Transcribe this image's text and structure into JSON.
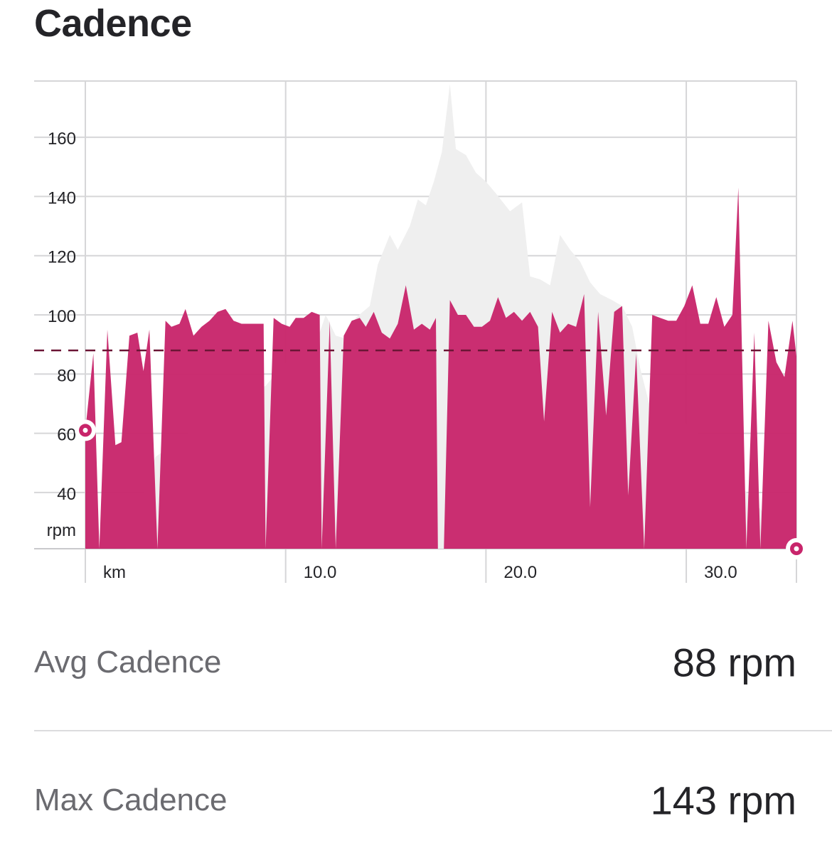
{
  "header": {
    "title": "Cadence"
  },
  "stats": {
    "avg": {
      "label": "Avg Cadence",
      "value": "88 rpm"
    },
    "max": {
      "label": "Max Cadence",
      "value": "143 rpm"
    }
  },
  "colors": {
    "cadence_fill": "#c8256b",
    "elevation_fill": "#efefef",
    "avg_line": "#6b1535",
    "grid": "#d6d6d8",
    "text": "#242428",
    "label_text": "#6b6b70"
  },
  "chart_data": {
    "type": "area",
    "title": "Cadence",
    "ylabel": "rpm",
    "xlabel": "km",
    "ylim": [
      21,
      179
    ],
    "xlim": [
      0,
      35.5
    ],
    "yticks": [
      40,
      60,
      80,
      100,
      120,
      140,
      160
    ],
    "ytick_labels": [
      "40",
      "60",
      "80",
      "100",
      "120",
      "140",
      "160"
    ],
    "xticks": [
      0,
      10,
      20,
      30,
      35.5
    ],
    "xtick_labels": [
      "km",
      "10.0",
      "20.0",
      "30.0",
      ""
    ],
    "grid": true,
    "avg_line": 88,
    "markers": [
      {
        "x": 0,
        "y": 61
      },
      {
        "x": 35.5,
        "y": 21
      }
    ],
    "series": [
      {
        "name": "",
        "points": [
          [
            0,
            61
          ],
          [
            0.4,
            87
          ],
          [
            0.7,
            21
          ],
          [
            1.1,
            95
          ],
          [
            1.5,
            56
          ],
          [
            1.8,
            57
          ],
          [
            2.2,
            93
          ],
          [
            2.6,
            94
          ],
          [
            2.9,
            81
          ],
          [
            3.2,
            95
          ],
          [
            3.6,
            21
          ],
          [
            4.0,
            98
          ],
          [
            4.3,
            96
          ],
          [
            4.7,
            97
          ],
          [
            5.0,
            102
          ],
          [
            5.4,
            93
          ],
          [
            5.8,
            96
          ],
          [
            6.2,
            98
          ],
          [
            6.6,
            101
          ],
          [
            7.0,
            102
          ],
          [
            7.4,
            98
          ],
          [
            7.8,
            97
          ],
          [
            8.2,
            97
          ],
          [
            8.6,
            97
          ],
          [
            8.9,
            97
          ],
          [
            9.0,
            21
          ],
          [
            9.4,
            99
          ],
          [
            9.8,
            97
          ],
          [
            10.2,
            96
          ],
          [
            10.5,
            99
          ],
          [
            10.9,
            99
          ],
          [
            11.3,
            101
          ],
          [
            11.7,
            100
          ],
          [
            11.8,
            21
          ],
          [
            12.2,
            98
          ],
          [
            12.5,
            21
          ],
          [
            12.9,
            93
          ],
          [
            13.3,
            98
          ],
          [
            13.7,
            99
          ],
          [
            14.0,
            96
          ],
          [
            14.4,
            101
          ],
          [
            14.8,
            94
          ],
          [
            15.2,
            92
          ],
          [
            15.6,
            97
          ],
          [
            16.0,
            110
          ],
          [
            16.4,
            95
          ],
          [
            16.8,
            97
          ],
          [
            17.2,
            95
          ],
          [
            17.5,
            99
          ],
          [
            17.6,
            21
          ],
          [
            17.9,
            21
          ],
          [
            18.2,
            105
          ],
          [
            18.6,
            100
          ],
          [
            19.0,
            100
          ],
          [
            19.4,
            96
          ],
          [
            19.8,
            96
          ],
          [
            20.2,
            98
          ],
          [
            20.6,
            106
          ],
          [
            21.0,
            99
          ],
          [
            21.4,
            101
          ],
          [
            21.8,
            98
          ],
          [
            22.2,
            101
          ],
          [
            22.6,
            96
          ],
          [
            22.9,
            64
          ],
          [
            23.3,
            101
          ],
          [
            23.7,
            94
          ],
          [
            24.1,
            97
          ],
          [
            24.5,
            96
          ],
          [
            24.9,
            107
          ],
          [
            25.2,
            35
          ],
          [
            25.6,
            101
          ],
          [
            26.0,
            66
          ],
          [
            26.4,
            101
          ],
          [
            26.8,
            103
          ],
          [
            27.1,
            39
          ],
          [
            27.5,
            87
          ],
          [
            27.9,
            21
          ],
          [
            28.3,
            100
          ],
          [
            28.7,
            99
          ],
          [
            29.1,
            98
          ],
          [
            29.5,
            98
          ],
          [
            29.9,
            103
          ],
          [
            30.3,
            110
          ],
          [
            30.7,
            97
          ],
          [
            31.1,
            97
          ],
          [
            31.5,
            106
          ],
          [
            31.9,
            96
          ],
          [
            32.3,
            100
          ],
          [
            32.6,
            143
          ],
          [
            33.0,
            21
          ],
          [
            33.4,
            94
          ],
          [
            33.7,
            21
          ],
          [
            34.1,
            98
          ],
          [
            34.5,
            84
          ],
          [
            34.9,
            79
          ],
          [
            35.3,
            98
          ],
          [
            35.7,
            86
          ],
          [
            36.1,
            21
          ]
        ]
      }
    ],
    "background_area": {
      "points": [
        [
          0,
          21
        ],
        [
          2.0,
          21
        ],
        [
          3.5,
          52
        ],
        [
          5.5,
          62
        ],
        [
          7.5,
          71
        ],
        [
          9.0,
          76
        ],
        [
          10.5,
          88
        ],
        [
          11.5,
          90
        ],
        [
          12.0,
          100
        ],
        [
          12.5,
          93
        ],
        [
          13.0,
          92
        ],
        [
          13.5,
          99
        ],
        [
          14.2,
          103
        ],
        [
          14.6,
          117
        ],
        [
          15.2,
          127
        ],
        [
          15.6,
          122
        ],
        [
          16.2,
          130
        ],
        [
          16.6,
          139
        ],
        [
          17.0,
          137
        ],
        [
          17.4,
          145
        ],
        [
          17.8,
          155
        ],
        [
          18.2,
          178
        ],
        [
          18.5,
          156
        ],
        [
          19.0,
          154
        ],
        [
          19.5,
          148
        ],
        [
          20.0,
          145
        ],
        [
          20.5,
          141
        ],
        [
          21.2,
          135
        ],
        [
          21.8,
          138
        ],
        [
          22.2,
          113
        ],
        [
          22.7,
          112
        ],
        [
          23.2,
          110
        ],
        [
          23.7,
          127
        ],
        [
          24.2,
          122
        ],
        [
          24.7,
          118
        ],
        [
          25.2,
          111
        ],
        [
          25.7,
          107
        ],
        [
          26.3,
          105
        ],
        [
          26.8,
          103
        ],
        [
          27.3,
          96
        ],
        [
          27.7,
          82
        ],
        [
          28.3,
          66
        ],
        [
          29.0,
          80
        ],
        [
          30.0,
          63
        ],
        [
          31.0,
          58
        ],
        [
          32.0,
          50
        ],
        [
          33.0,
          40
        ],
        [
          34.0,
          32
        ],
        [
          35.0,
          28
        ],
        [
          36.1,
          21
        ]
      ]
    }
  }
}
